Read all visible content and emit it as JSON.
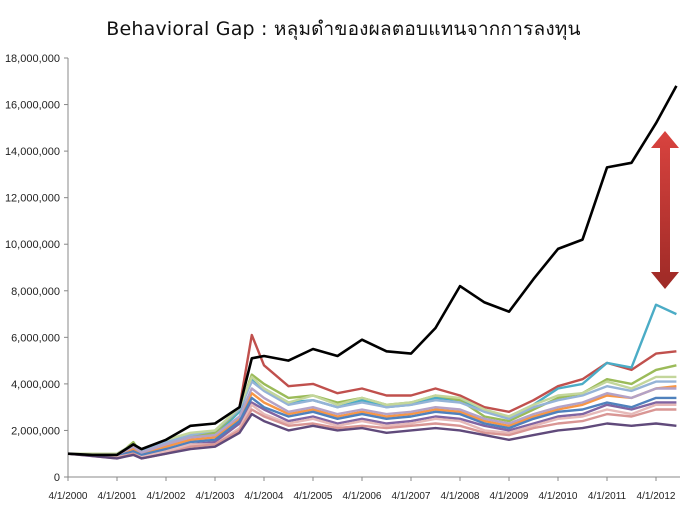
{
  "chart_data": {
    "type": "line",
    "title": "Behavioral Gap : หลุมดำของผลตอบแทนจากการลงทุน",
    "xlabel": "",
    "ylabel": "",
    "ylim": [
      0,
      18000000
    ],
    "yticks": [
      "0",
      "2,000,000",
      "4,000,000",
      "6,000,000",
      "8,000,000",
      "10,000,000",
      "12,000,000",
      "14,000,000",
      "16,000,000",
      "18,000,000"
    ],
    "xtick_labels": [
      "4/1/2000",
      "4/1/2001",
      "4/1/2002",
      "4/1/2003",
      "4/1/2004",
      "4/1/2005",
      "4/1/2006",
      "4/1/2007",
      "4/1/2008",
      "4/1/2009",
      "4/1/2010",
      "4/1/2011",
      "4/1/2012"
    ],
    "grid": false,
    "legend": "none",
    "annotation": "red double-headed arrow marking the gap between the black line and the colored lines",
    "x": [
      "2000-04",
      "2000-10",
      "2001-04",
      "2001-08",
      "2001-10",
      "2002-04",
      "2002-10",
      "2003-04",
      "2003-10",
      "2004-01",
      "2004-04",
      "2004-10",
      "2005-04",
      "2005-10",
      "2006-04",
      "2006-10",
      "2007-04",
      "2007-10",
      "2008-04",
      "2008-10",
      "2009-04",
      "2009-10",
      "2010-04",
      "2010-10",
      "2011-04",
      "2011-10",
      "2012-04",
      "2012-09"
    ],
    "series": [
      {
        "color": "#c0504d",
        "values": [
          1000000.0,
          950000.0,
          900000.0,
          1300000.0,
          1000000.0,
          1400000.0,
          1800000.0,
          1900000.0,
          3000000.0,
          6100000.0,
          4800000.0,
          3900000.0,
          4000000.0,
          3600000.0,
          3800000.0,
          3500000.0,
          3500000.0,
          3800000.0,
          3500000.0,
          3000000.0,
          2800000.0,
          3300000.0,
          3900000.0,
          4200000.0,
          4900000.0,
          4600000.0,
          5300000.0,
          5400000.0
        ]
      },
      {
        "color": "#4bacc6",
        "values": [
          1000000.0,
          950000.0,
          900000.0,
          1300000.0,
          1000000.0,
          1400000.0,
          1700000.0,
          1800000.0,
          2800000.0,
          4200000.0,
          3800000.0,
          3200000.0,
          3300000.0,
          3000000.0,
          3300000.0,
          3000000.0,
          3100000.0,
          3400000.0,
          3300000.0,
          2800000.0,
          2600000.0,
          3100000.0,
          3800000.0,
          4000000.0,
          4900000.0,
          4700000.0,
          7400000.0,
          7000000.0
        ]
      },
      {
        "color": "#9bbb59",
        "values": [
          1000000.0,
          950000.0,
          900000.0,
          1500000.0,
          1000000.0,
          1400000.0,
          1800000.0,
          1900000.0,
          2900000.0,
          4400000.0,
          4000000.0,
          3400000.0,
          3500000.0,
          3200000.0,
          3400000.0,
          3100000.0,
          3200000.0,
          3500000.0,
          3300000.0,
          2600000.0,
          2400000.0,
          2900000.0,
          3400000.0,
          3600000.0,
          4200000.0,
          4000000.0,
          4600000.0,
          4800000.0
        ]
      },
      {
        "color": "#95b3d7",
        "values": [
          1000000.0,
          1000000.0,
          1000000.0,
          1400000.0,
          1150000.0,
          1500000.0,
          1800000.0,
          2000000.0,
          2900000.0,
          4100000.0,
          3700000.0,
          3100000.0,
          3300000.0,
          3000000.0,
          3200000.0,
          3000000.0,
          3100000.0,
          3300000.0,
          3200000.0,
          2800000.0,
          2500000.0,
          3000000.0,
          3300000.0,
          3500000.0,
          3900000.0,
          3700000.0,
          4100000.0,
          4100000.0
        ]
      },
      {
        "color": "#f79646",
        "values": [
          1000000.0,
          950000.0,
          900000.0,
          1200000.0,
          1000000.0,
          1300000.0,
          1600000.0,
          1700000.0,
          2500000.0,
          3600000.0,
          3200000.0,
          2700000.0,
          2900000.0,
          2600000.0,
          2800000.0,
          2600000.0,
          2700000.0,
          2900000.0,
          2800000.0,
          2400000.0,
          2200000.0,
          2600000.0,
          2900000.0,
          3100000.0,
          3500000.0,
          3400000.0,
          3800000.0,
          3900000.0
        ]
      },
      {
        "color": "#8064a2",
        "values": [
          1000000.0,
          950000.0,
          900000.0,
          1100000.0,
          900000.0,
          1200000.0,
          1400000.0,
          1500000.0,
          2300000.0,
          3200000.0,
          2900000.0,
          2400000.0,
          2600000.0,
          2300000.0,
          2500000.0,
          2300000.0,
          2400000.0,
          2600000.0,
          2500000.0,
          2200000.0,
          2000000.0,
          2300000.0,
          2600000.0,
          2700000.0,
          3100000.0,
          2900000.0,
          3200000.0,
          3200000.0
        ]
      },
      {
        "color": "#4f81bd",
        "values": [
          1000000.0,
          950000.0,
          900000.0,
          1100000.0,
          950000.0,
          1200000.0,
          1500000.0,
          1600000.0,
          2400000.0,
          3400000.0,
          3000000.0,
          2600000.0,
          2800000.0,
          2500000.0,
          2700000.0,
          2500000.0,
          2600000.0,
          2800000.0,
          2700000.0,
          2300000.0,
          2100000.0,
          2500000.0,
          2800000.0,
          2900000.0,
          3200000.0,
          3000000.0,
          3400000.0,
          3400000.0
        ]
      },
      {
        "color": "#e6b9b8",
        "values": [
          1000000.0,
          950000.0,
          850000.0,
          1000000.0,
          850000.0,
          1100000.0,
          1400000.0,
          1400000.0,
          2100000.0,
          3100000.0,
          2700000.0,
          2300000.0,
          2500000.0,
          2200000.0,
          2400000.0,
          2200000.0,
          2300000.0,
          2500000.0,
          2400000.0,
          2000000.0,
          1900000.0,
          2200000.0,
          2500000.0,
          2600000.0,
          2900000.0,
          2700000.0,
          3100000.0,
          3100000.0
        ]
      },
      {
        "color": "#b3a2c7",
        "values": [
          1000000.0,
          950000.0,
          950000.0,
          1300000.0,
          1050000.0,
          1400000.0,
          1700000.0,
          1800000.0,
          2600000.0,
          3800000.0,
          3400000.0,
          2800000.0,
          3000000.0,
          2700000.0,
          2900000.0,
          2700000.0,
          2800000.0,
          3000000.0,
          2900000.0,
          2500000.0,
          2300000.0,
          2700000.0,
          3000000.0,
          3200000.0,
          3600000.0,
          3400000.0,
          3800000.0,
          3800000.0
        ]
      },
      {
        "color": "#d99694",
        "values": [
          1000000.0,
          900000.0,
          800000.0,
          1000000.0,
          800000.0,
          1000000.0,
          1300000.0,
          1400000.0,
          2000000.0,
          2900000.0,
          2600000.0,
          2200000.0,
          2300000.0,
          2100000.0,
          2200000.0,
          2100000.0,
          2200000.0,
          2300000.0,
          2200000.0,
          1900000.0,
          1800000.0,
          2100000.0,
          2300000.0,
          2400000.0,
          2700000.0,
          2600000.0,
          2900000.0,
          2900000.0
        ]
      },
      {
        "color": "#c3d69b",
        "values": [
          1000000.0,
          1000000.0,
          1000000.0,
          1400000.0,
          1200000.0,
          1600000.0,
          1900000.0,
          2000000.0,
          3000000.0,
          4300000.0,
          3800000.0,
          3200000.0,
          3500000.0,
          3100000.0,
          3400000.0,
          3100000.0,
          3200000.0,
          3500000.0,
          3400000.0,
          2900000.0,
          2600000.0,
          3100000.0,
          3500000.0,
          3600000.0,
          4100000.0,
          3800000.0,
          4300000.0,
          4300000.0
        ]
      },
      {
        "color": "#604a7b",
        "values": [
          1000000.0,
          900000.0,
          800000.0,
          950000.0,
          800000.0,
          1000000.0,
          1200000.0,
          1300000.0,
          1900000.0,
          2700000.0,
          2400000.0,
          2000000.0,
          2200000.0,
          2000000.0,
          2100000.0,
          1900000.0,
          2000000.0,
          2100000.0,
          2000000.0,
          1800000.0,
          1600000.0,
          1800000.0,
          2000000.0,
          2100000.0,
          2300000.0,
          2200000.0,
          2300000.0,
          2200000.0
        ]
      },
      {
        "color": "#000000",
        "values": [
          1000000.0,
          950000.0,
          950000.0,
          1400000.0,
          1200000.0,
          1600000.0,
          2200000.0,
          2300000.0,
          3000000.0,
          5100000.0,
          5200000.0,
          5000000.0,
          5500000.0,
          5200000.0,
          5900000.0,
          5400000.0,
          5300000.0,
          6400000.0,
          8200000.0,
          7500000.0,
          7100000.0,
          8500000.0,
          9800000.0,
          10200000.0,
          13300000.0,
          13500000.0,
          15200000.0,
          16800000.0
        ]
      }
    ]
  }
}
